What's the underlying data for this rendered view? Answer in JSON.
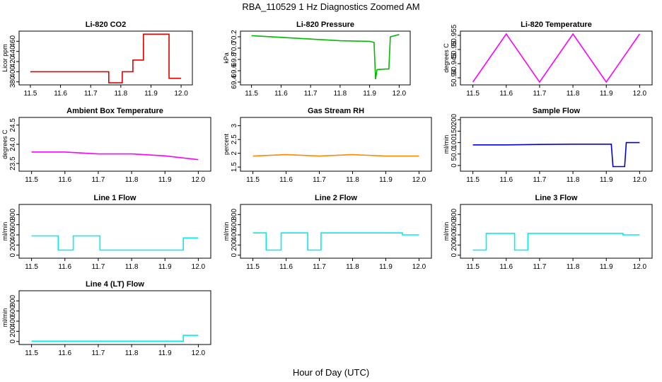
{
  "figure": {
    "title": "RBA_110529  1 Hz Diagnostics Zoomed AM",
    "xlabel": "Hour of Day (UTC)"
  },
  "chart_data": [
    {
      "type": "line",
      "title": "Li-820 CO2",
      "ylabel": "Licor ppm",
      "color": "#dd0000",
      "xlim": [
        11.5,
        12.0
      ],
      "xticks": [
        11.5,
        11.6,
        11.7,
        11.8,
        11.9,
        12.0
      ],
      "ylim": [
        374,
        480
      ],
      "yticks": [
        380,
        400,
        420,
        440,
        460
      ],
      "points": [
        [
          11.5,
          400
        ],
        [
          11.76,
          400
        ],
        [
          11.76,
          378
        ],
        [
          11.805,
          378
        ],
        [
          11.805,
          400
        ],
        [
          11.84,
          400
        ],
        [
          11.84,
          423
        ],
        [
          11.875,
          423
        ],
        [
          11.875,
          474
        ],
        [
          11.96,
          474
        ],
        [
          11.96,
          387
        ],
        [
          12.0,
          387
        ]
      ]
    },
    {
      "type": "line",
      "title": "Li-820 Pressure",
      "ylabel": "kPa",
      "color": "#00bb00",
      "xlim": [
        11.5,
        12.0
      ],
      "xticks": [
        11.5,
        11.6,
        11.7,
        11.8,
        11.9,
        12.0
      ],
      "ylim": [
        69.35,
        70.3
      ],
      "yticks": [
        69.4,
        69.6,
        69.8,
        70.0,
        70.2
      ],
      "points": [
        [
          11.5,
          70.22
        ],
        [
          11.6,
          70.19
        ],
        [
          11.7,
          70.16
        ],
        [
          11.8,
          70.13
        ],
        [
          11.9,
          70.12
        ],
        [
          11.915,
          70.1
        ],
        [
          11.92,
          69.45
        ],
        [
          11.925,
          69.62
        ],
        [
          11.955,
          69.63
        ],
        [
          11.965,
          69.63
        ],
        [
          11.97,
          70.2
        ],
        [
          12.0,
          70.24
        ]
      ]
    },
    {
      "type": "line",
      "title": "Li-820 Temperature",
      "ylabel": "degrees C",
      "color": "#ff00ff",
      "xlim": [
        11.5,
        12.0
      ],
      "xticks": [
        11.5,
        11.6,
        11.7,
        11.8,
        11.9,
        12.0
      ],
      "ylim": [
        50.9375,
        50.9565
      ],
      "yticks": [
        50.94,
        50.945,
        50.95,
        50.955
      ],
      "points": [
        [
          11.5,
          50.9385
        ],
        [
          11.6,
          50.9555
        ],
        [
          11.7,
          50.9385
        ],
        [
          11.8,
          50.9555
        ],
        [
          11.9,
          50.9385
        ],
        [
          12.0,
          50.9555
        ]
      ]
    },
    {
      "type": "line",
      "title": "Ambient Box Temperature",
      "ylabel": "degrees C",
      "color": "#ff00ff",
      "xlim": [
        11.5,
        12.0
      ],
      "xticks": [
        11.5,
        11.6,
        11.7,
        11.8,
        11.9,
        12.0
      ],
      "ylim": [
        23.3,
        24.7
      ],
      "yticks": [
        23.5,
        24.0,
        24.5
      ],
      "points": [
        [
          11.5,
          23.8
        ],
        [
          11.6,
          23.8
        ],
        [
          11.7,
          23.75
        ],
        [
          11.8,
          23.75
        ],
        [
          11.9,
          23.7
        ],
        [
          12.0,
          23.6
        ]
      ]
    },
    {
      "type": "line",
      "title": "Gas Stream RH",
      "ylabel": "percent",
      "color": "#ff8800",
      "xlim": [
        11.5,
        12.0
      ],
      "xticks": [
        11.5,
        11.6,
        11.7,
        11.8,
        11.9,
        12.0
      ],
      "ylim": [
        1.35,
        3.3
      ],
      "yticks": [
        1.5,
        2.0,
        2.5,
        3.0
      ],
      "points": [
        [
          11.5,
          1.9
        ],
        [
          11.6,
          1.95
        ],
        [
          11.7,
          1.9
        ],
        [
          11.8,
          1.95
        ],
        [
          11.9,
          1.9
        ],
        [
          12.0,
          1.9
        ]
      ]
    },
    {
      "type": "line",
      "title": "Sample Flow",
      "ylabel": "ml/min",
      "color": "#0000dd",
      "xlim": [
        11.5,
        12.0
      ],
      "xticks": [
        11.5,
        11.6,
        11.7,
        11.8,
        11.9,
        12.0
      ],
      "ylim": [
        -25,
        210
      ],
      "yticks": [
        0,
        50,
        100,
        150,
        200
      ],
      "points": [
        [
          11.5,
          90
        ],
        [
          11.6,
          90
        ],
        [
          11.7,
          92
        ],
        [
          11.8,
          93
        ],
        [
          11.915,
          93
        ],
        [
          11.92,
          -5
        ],
        [
          11.955,
          -5
        ],
        [
          11.96,
          100
        ],
        [
          12.0,
          100
        ]
      ]
    },
    {
      "type": "line",
      "title": "Line 1 Flow",
      "ylabel": "ml/min",
      "color": "#00eeee",
      "xlim": [
        11.5,
        12.0
      ],
      "xticks": [
        11.5,
        11.6,
        11.7,
        11.8,
        11.9,
        12.0
      ],
      "ylim": [
        -60,
        1000
      ],
      "yticks": [
        0,
        200,
        400,
        600,
        800
      ],
      "points": [
        [
          11.5,
          380
        ],
        [
          11.58,
          380
        ],
        [
          11.58,
          100
        ],
        [
          11.625,
          100
        ],
        [
          11.625,
          380
        ],
        [
          11.705,
          380
        ],
        [
          11.705,
          100
        ],
        [
          11.955,
          100
        ],
        [
          11.955,
          340
        ],
        [
          12.0,
          340
        ]
      ]
    },
    {
      "type": "line",
      "title": "Line 2 Flow",
      "ylabel": "ml/min",
      "color": "#00eeee",
      "xlim": [
        11.5,
        12.0
      ],
      "xticks": [
        11.5,
        11.6,
        11.7,
        11.8,
        11.9,
        12.0
      ],
      "ylim": [
        -60,
        1000
      ],
      "yticks": [
        0,
        200,
        400,
        600,
        800
      ],
      "points": [
        [
          11.5,
          440
        ],
        [
          11.54,
          440
        ],
        [
          11.54,
          100
        ],
        [
          11.585,
          100
        ],
        [
          11.585,
          440
        ],
        [
          11.665,
          440
        ],
        [
          11.665,
          100
        ],
        [
          11.705,
          100
        ],
        [
          11.705,
          440
        ],
        [
          11.95,
          440
        ],
        [
          11.95,
          400
        ],
        [
          12.0,
          400
        ]
      ]
    },
    {
      "type": "line",
      "title": "Line 3 Flow",
      "ylabel": "ml/min",
      "color": "#00eeee",
      "xlim": [
        11.5,
        12.0
      ],
      "xticks": [
        11.5,
        11.6,
        11.7,
        11.8,
        11.9,
        12.0
      ],
      "ylim": [
        -60,
        1000
      ],
      "yticks": [
        0,
        200,
        400,
        600,
        800
      ],
      "points": [
        [
          11.5,
          100
        ],
        [
          11.54,
          100
        ],
        [
          11.54,
          430
        ],
        [
          11.625,
          430
        ],
        [
          11.625,
          100
        ],
        [
          11.665,
          100
        ],
        [
          11.665,
          430
        ],
        [
          11.95,
          430
        ],
        [
          11.95,
          400
        ],
        [
          12.0,
          400
        ]
      ]
    },
    {
      "type": "line",
      "title": "Line 4 (LT) Flow",
      "ylabel": "ml/min",
      "color": "#00eeee",
      "xlim": [
        11.5,
        12.0
      ],
      "xticks": [
        11.5,
        11.6,
        11.7,
        11.8,
        11.9,
        12.0
      ],
      "ylim": [
        -60,
        1000
      ],
      "yticks": [
        0,
        200,
        400,
        600,
        800
      ],
      "points": [
        [
          11.5,
          5
        ],
        [
          11.955,
          5
        ],
        [
          11.955,
          120
        ],
        [
          12.0,
          120
        ]
      ]
    }
  ]
}
